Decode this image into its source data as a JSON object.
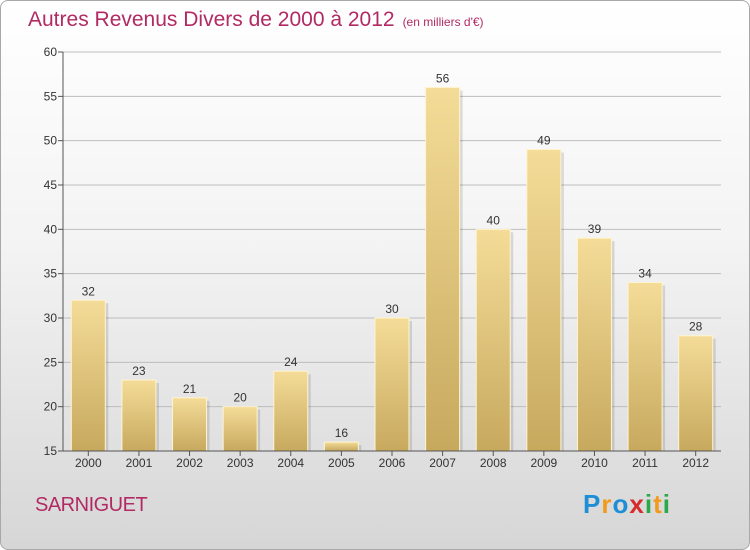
{
  "title": "Autres Revenus Divers de 2000 à 2012",
  "unit_note": "(en milliers d'€)",
  "commune": "SARNIGUET",
  "logo": {
    "letters": [
      "P",
      "r",
      "o",
      "x",
      "i",
      "t",
      "i"
    ],
    "colors": [
      "#1e8fd6",
      "#f29a1a",
      "#1e8fd6",
      "#d62b2b",
      "#2aa84a",
      "#f29a1a",
      "#2aa84a"
    ]
  },
  "colors": {
    "title": "#b22a63",
    "bar_top": "#f4dc98",
    "bar_bottom": "#c7a95e"
  },
  "chart_data": {
    "type": "bar",
    "categories": [
      "2000",
      "2001",
      "2002",
      "2003",
      "2004",
      "2005",
      "2006",
      "2007",
      "2008",
      "2009",
      "2010",
      "2011",
      "2012"
    ],
    "values": [
      32,
      23,
      21,
      20,
      24,
      16,
      30,
      56,
      40,
      49,
      39,
      34,
      28
    ],
    "ylim": [
      15,
      60
    ],
    "yticks": [
      15,
      20,
      25,
      30,
      35,
      40,
      45,
      50,
      55,
      60
    ],
    "grid": true,
    "legend": "none"
  }
}
